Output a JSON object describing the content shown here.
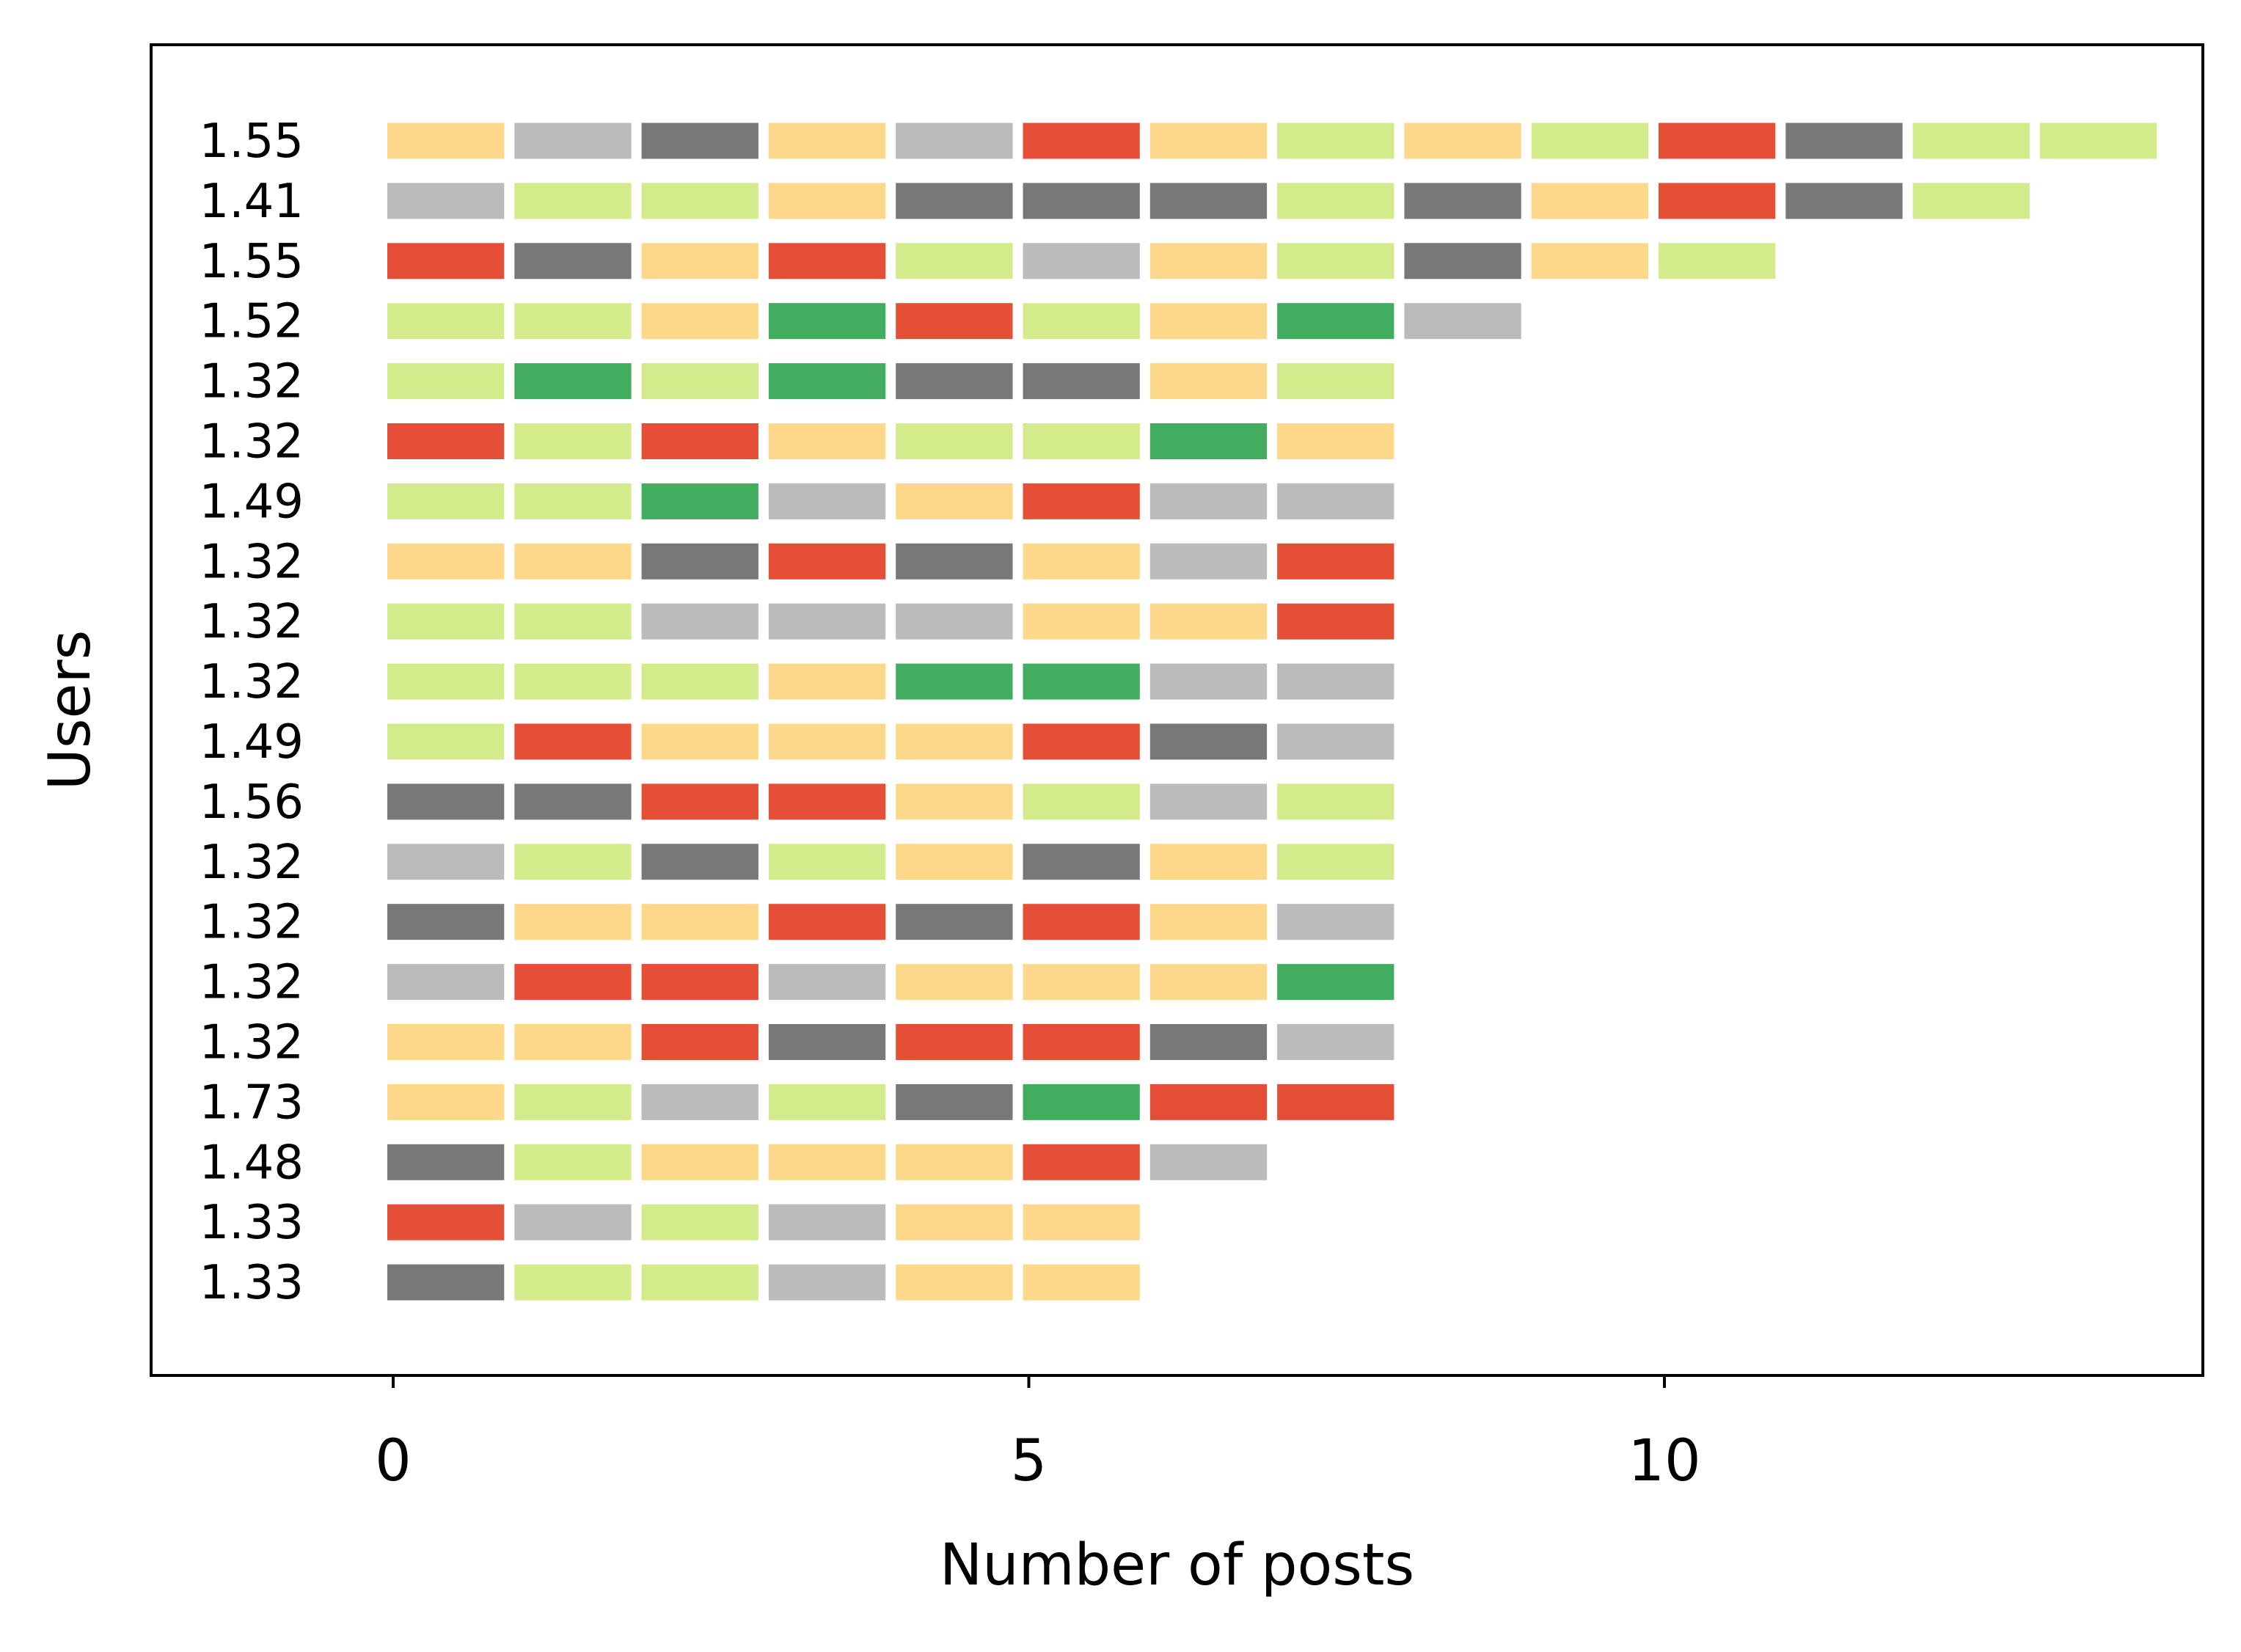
{
  "chart_data": {
    "type": "bar",
    "xlabel": "Number of posts",
    "ylabel": "Users",
    "xlim": [
      -1.9,
      14.3
    ],
    "x_ticks": [
      0,
      5,
      10
    ],
    "grid": false,
    "legend": "none",
    "colors": {
      "G": "#42ad5f",
      "L": "#d3eb8a",
      "Y": "#fdd88a",
      "S": "#bbbbbb",
      "D": "#787878",
      "R": "#e54f38"
    },
    "users": [
      {
        "label": "1.55",
        "posts": [
          "Y",
          "S",
          "D",
          "Y",
          "S",
          "R",
          "Y",
          "L",
          "Y",
          "L",
          "R",
          "D",
          "L",
          "L"
        ]
      },
      {
        "label": "1.41",
        "posts": [
          "S",
          "L",
          "L",
          "Y",
          "D",
          "D",
          "D",
          "L",
          "D",
          "Y",
          "R",
          "D",
          "L"
        ]
      },
      {
        "label": "1.55",
        "posts": [
          "R",
          "D",
          "Y",
          "R",
          "L",
          "S",
          "Y",
          "L",
          "D",
          "Y",
          "L"
        ]
      },
      {
        "label": "1.52",
        "posts": [
          "L",
          "L",
          "Y",
          "G",
          "R",
          "L",
          "Y",
          "G",
          "S"
        ]
      },
      {
        "label": "1.32",
        "posts": [
          "L",
          "G",
          "L",
          "G",
          "D",
          "D",
          "Y",
          "L"
        ]
      },
      {
        "label": "1.32",
        "posts": [
          "R",
          "L",
          "R",
          "Y",
          "L",
          "L",
          "G",
          "Y"
        ]
      },
      {
        "label": "1.49",
        "posts": [
          "L",
          "L",
          "G",
          "S",
          "Y",
          "R",
          "S",
          "S"
        ]
      },
      {
        "label": "1.32",
        "posts": [
          "Y",
          "Y",
          "D",
          "R",
          "D",
          "Y",
          "S",
          "R"
        ]
      },
      {
        "label": "1.32",
        "posts": [
          "L",
          "L",
          "S",
          "S",
          "S",
          "Y",
          "Y",
          "R"
        ]
      },
      {
        "label": "1.32",
        "posts": [
          "L",
          "L",
          "L",
          "Y",
          "G",
          "G",
          "S",
          "S"
        ]
      },
      {
        "label": "1.49",
        "posts": [
          "L",
          "R",
          "Y",
          "Y",
          "Y",
          "R",
          "D",
          "S"
        ]
      },
      {
        "label": "1.56",
        "posts": [
          "D",
          "D",
          "R",
          "R",
          "Y",
          "L",
          "S",
          "L"
        ]
      },
      {
        "label": "1.32",
        "posts": [
          "S",
          "L",
          "D",
          "L",
          "Y",
          "D",
          "Y",
          "L"
        ]
      },
      {
        "label": "1.32",
        "posts": [
          "D",
          "Y",
          "Y",
          "R",
          "D",
          "R",
          "Y",
          "S"
        ]
      },
      {
        "label": "1.32",
        "posts": [
          "S",
          "R",
          "R",
          "S",
          "Y",
          "Y",
          "Y",
          "G"
        ]
      },
      {
        "label": "1.32",
        "posts": [
          "Y",
          "Y",
          "R",
          "D",
          "R",
          "R",
          "D",
          "S"
        ]
      },
      {
        "label": "1.73",
        "posts": [
          "Y",
          "L",
          "S",
          "L",
          "D",
          "G",
          "R",
          "R"
        ]
      },
      {
        "label": "1.48",
        "posts": [
          "D",
          "L",
          "Y",
          "Y",
          "Y",
          "R",
          "S"
        ]
      },
      {
        "label": "1.33",
        "posts": [
          "R",
          "S",
          "L",
          "S",
          "Y",
          "Y"
        ]
      },
      {
        "label": "1.33",
        "posts": [
          "D",
          "L",
          "L",
          "S",
          "Y",
          "Y"
        ]
      }
    ]
  }
}
